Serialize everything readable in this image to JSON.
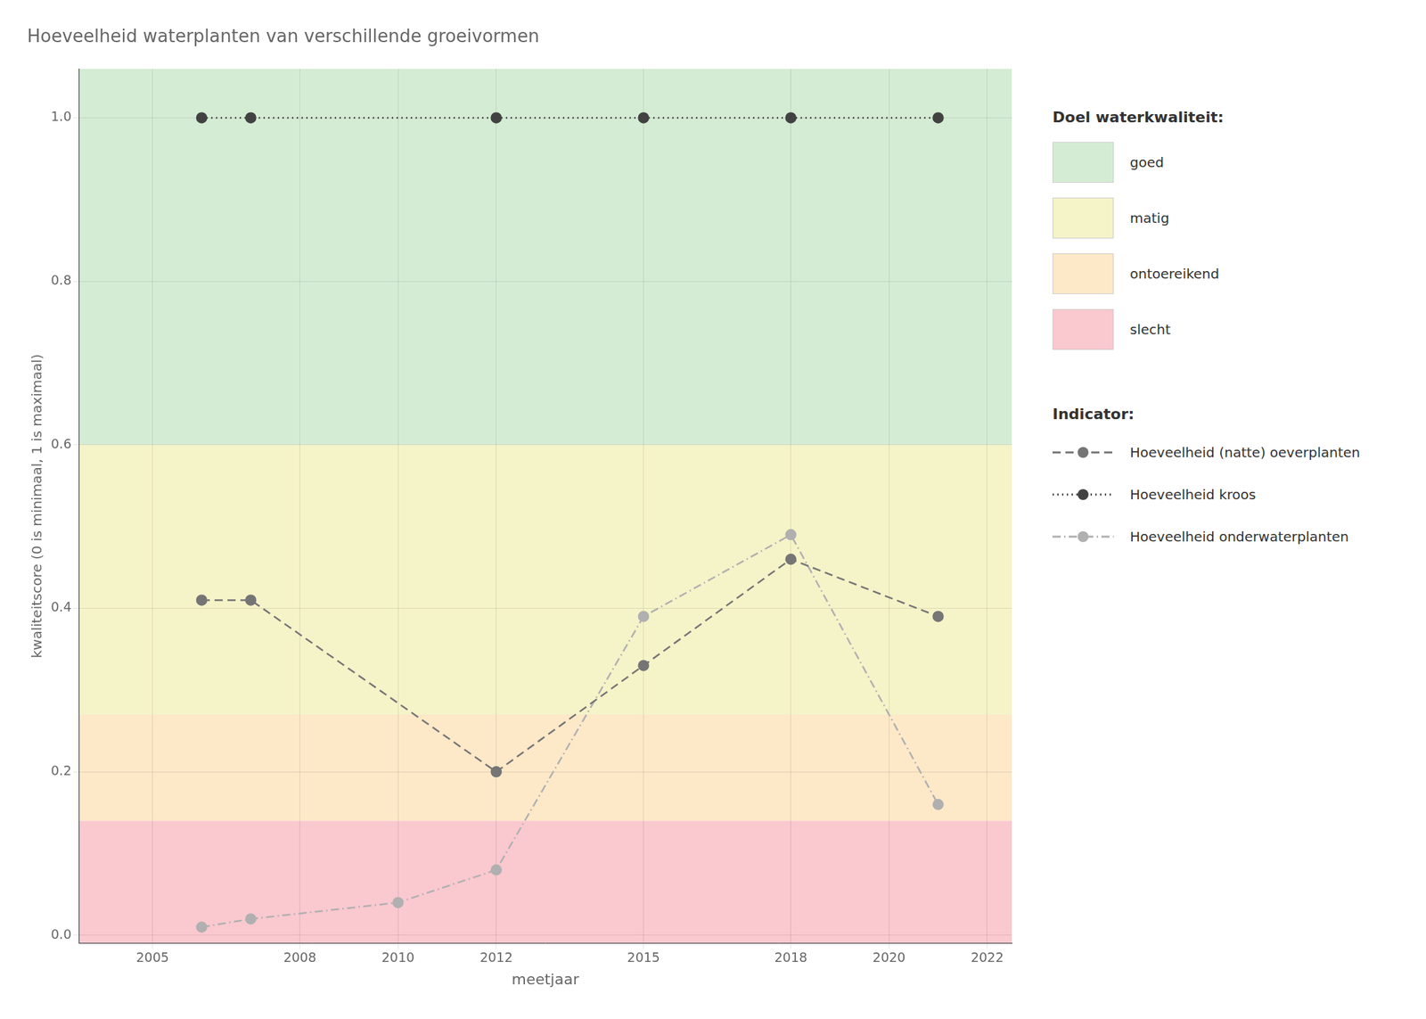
{
  "chart_data": {
    "type": "line",
    "title": "Hoeveelheid waterplanten van verschillende groeivormen",
    "x_label": "meetjaar",
    "y_label": "kwaliteitscore (0 is minimaal, 1 is maximaal)",
    "xlim": [
      2003.5,
      2022.5
    ],
    "xticks": [
      2005,
      2008,
      2010,
      2012,
      2015,
      2018,
      2020,
      2022
    ],
    "ylim": [
      -0.01,
      1.06
    ],
    "yticks": [
      {
        "value": 0.0,
        "label": "0.0"
      },
      0.2,
      0.4,
      0.6,
      0.8,
      {
        "value": 1.0,
        "label": "1.0"
      }
    ],
    "grid": true,
    "legend": "right",
    "bands_title": "Doel waterkwaliteit:",
    "bands": [
      {
        "label": "goed",
        "ymin": 0.6,
        "ymax": 1.06,
        "color": "#d5ecd4"
      },
      {
        "label": "matig",
        "ymin": 0.27,
        "ymax": 0.6,
        "color": "#f5f3c8"
      },
      {
        "label": "ontoereikend",
        "ymin": 0.14,
        "ymax": 0.27,
        "color": "#fde8c8"
      },
      {
        "label": "slecht",
        "ymin": -0.01,
        "ymax": 0.14,
        "color": "#fac8cf"
      }
    ],
    "series_title": "Indicator:",
    "series": [
      {
        "name": "Hoeveelheid (natte) oeverplanten",
        "color": "#757575",
        "line_style": "dashed",
        "marker": "circle",
        "x": [
          2006,
          2007,
          2012,
          2015,
          2018,
          2021
        ],
        "values": [
          0.41,
          0.41,
          0.2,
          0.33,
          0.46,
          0.39
        ]
      },
      {
        "name": "Hoeveelheid kroos",
        "color": "#424242",
        "line_style": "dotted",
        "marker": "circle",
        "x": [
          2006,
          2007,
          2012,
          2015,
          2018,
          2021
        ],
        "values": [
          1.0,
          1.0,
          1.0,
          1.0,
          1.0,
          1.0
        ]
      },
      {
        "name": "Hoeveelheid onderwaterplanten",
        "color": "#b0b0b0",
        "line_style": "dashdot",
        "marker": "circle",
        "x": [
          2006,
          2007,
          2010,
          2012,
          2015,
          2018,
          2021
        ],
        "values": [
          0.01,
          0.02,
          0.04,
          0.08,
          0.39,
          0.49,
          0.16
        ]
      }
    ]
  }
}
